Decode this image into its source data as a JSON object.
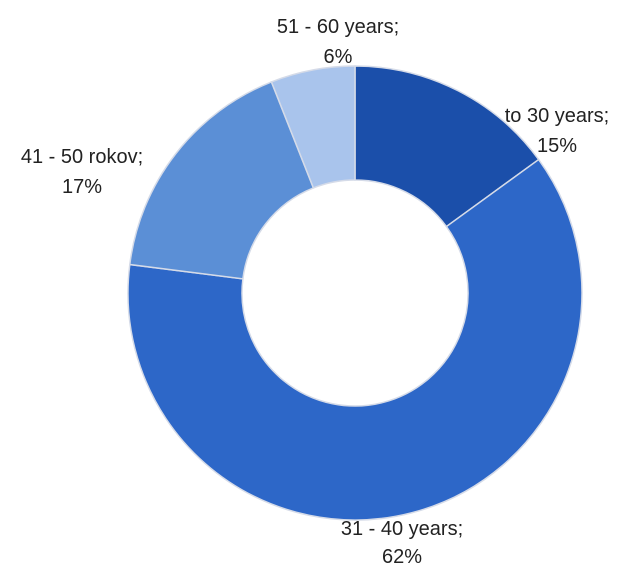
{
  "chart_data": {
    "type": "pie",
    "donut": true,
    "title": "",
    "categories": [
      "to 30 years",
      "31 - 40 years",
      "41 - 50 rokov",
      "51 - 60 years"
    ],
    "values": [
      15,
      62,
      17,
      6
    ],
    "labels": [
      {
        "name": "to 30 years;",
        "value": "15%"
      },
      {
        "name": "31 - 40 years;",
        "value": "62%"
      },
      {
        "name": "41 - 50 rokov;",
        "value": "17%"
      },
      {
        "name": "51 - 60 years;",
        "value": "6%"
      }
    ],
    "colors": [
      "#1b4faa",
      "#2d67c8",
      "#5b8fd6",
      "#a9c4ec"
    ],
    "legend": "none"
  }
}
